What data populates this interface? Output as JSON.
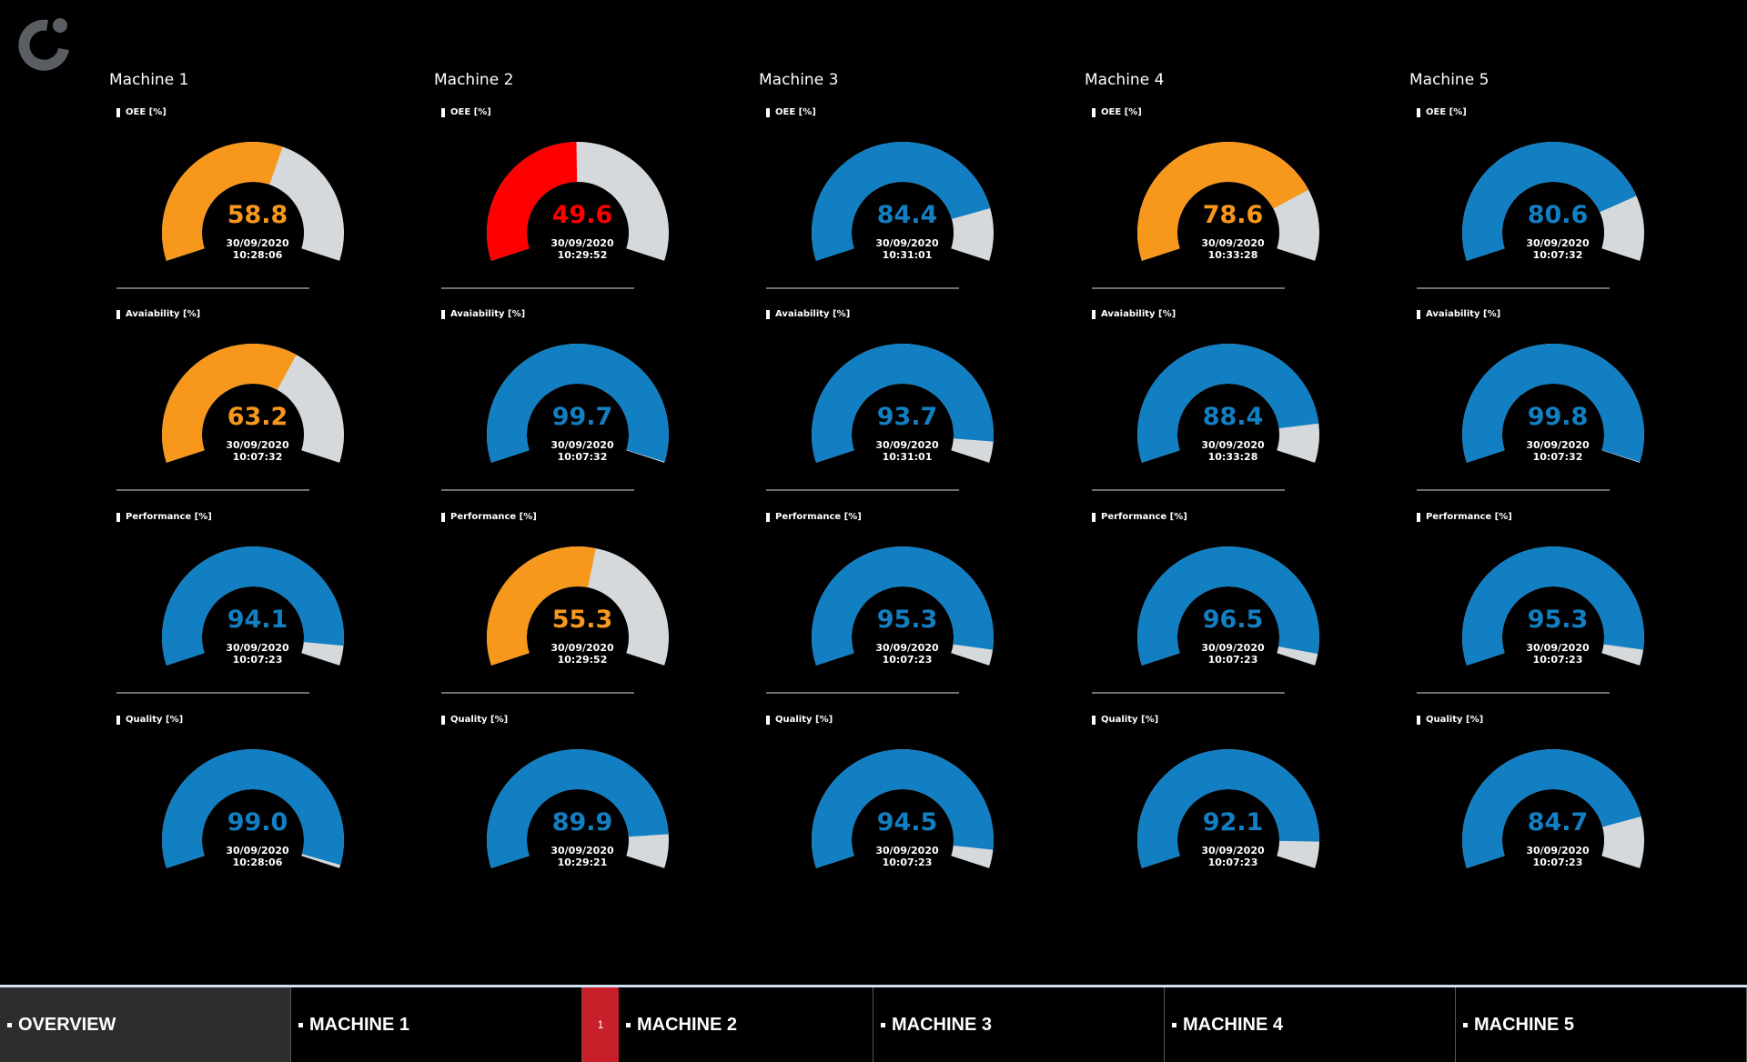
{
  "colors": {
    "blue": "#127fc2",
    "orange": "#f7981d",
    "red": "#fe0000",
    "track": "#d6d9dc",
    "background": "#000000"
  },
  "logo": {
    "icon": "company-logo-icon"
  },
  "machines": [
    {
      "title": "Machine 1",
      "gauges": [
        {
          "label": "OEE [%]",
          "value": 58.8,
          "display": "58.8",
          "status": "orange",
          "date": "30/09/2020",
          "time": "10:28:06"
        },
        {
          "label": "Avaiability [%]",
          "value": 63.2,
          "display": "63.2",
          "status": "orange",
          "date": "30/09/2020",
          "time": "10:07:32"
        },
        {
          "label": "Performance [%]",
          "value": 94.1,
          "display": "94.1",
          "status": "blue",
          "date": "30/09/2020",
          "time": "10:07:23"
        },
        {
          "label": "Quality [%]",
          "value": 99.0,
          "display": "99.0",
          "status": "blue",
          "date": "30/09/2020",
          "time": "10:28:06"
        }
      ]
    },
    {
      "title": "Machine 2",
      "gauges": [
        {
          "label": "OEE [%]",
          "value": 49.6,
          "display": "49.6",
          "status": "red",
          "date": "30/09/2020",
          "time": "10:29:52"
        },
        {
          "label": "Avaiability [%]",
          "value": 99.7,
          "display": "99.7",
          "status": "blue",
          "date": "30/09/2020",
          "time": "10:07:32"
        },
        {
          "label": "Performance [%]",
          "value": 55.3,
          "display": "55.3",
          "status": "orange",
          "date": "30/09/2020",
          "time": "10:29:52"
        },
        {
          "label": "Quality [%]",
          "value": 89.9,
          "display": "89.9",
          "status": "blue",
          "date": "30/09/2020",
          "time": "10:29:21"
        }
      ]
    },
    {
      "title": "Machine 3",
      "gauges": [
        {
          "label": "OEE [%]",
          "value": 84.4,
          "display": "84.4",
          "status": "blue",
          "date": "30/09/2020",
          "time": "10:31:01"
        },
        {
          "label": "Avaiability [%]",
          "value": 93.7,
          "display": "93.7",
          "status": "blue",
          "date": "30/09/2020",
          "time": "10:31:01"
        },
        {
          "label": "Performance [%]",
          "value": 95.3,
          "display": "95.3",
          "status": "blue",
          "date": "30/09/2020",
          "time": "10:07:23"
        },
        {
          "label": "Quality [%]",
          "value": 94.5,
          "display": "94.5",
          "status": "blue",
          "date": "30/09/2020",
          "time": "10:07:23"
        }
      ]
    },
    {
      "title": "Machine 4",
      "gauges": [
        {
          "label": "OEE [%]",
          "value": 78.6,
          "display": "78.6",
          "status": "orange",
          "date": "30/09/2020",
          "time": "10:33:28"
        },
        {
          "label": "Avaiability [%]",
          "value": 88.4,
          "display": "88.4",
          "status": "blue",
          "date": "30/09/2020",
          "time": "10:33:28"
        },
        {
          "label": "Performance [%]",
          "value": 96.5,
          "display": "96.5",
          "status": "blue",
          "date": "30/09/2020",
          "time": "10:07:23"
        },
        {
          "label": "Quality [%]",
          "value": 92.1,
          "display": "92.1",
          "status": "blue",
          "date": "30/09/2020",
          "time": "10:07:23"
        }
      ]
    },
    {
      "title": "Machine 5",
      "gauges": [
        {
          "label": "OEE [%]",
          "value": 80.6,
          "display": "80.6",
          "status": "blue",
          "date": "30/09/2020",
          "time": "10:07:32"
        },
        {
          "label": "Avaiability [%]",
          "value": 99.8,
          "display": "99.8",
          "status": "blue",
          "date": "30/09/2020",
          "time": "10:07:32"
        },
        {
          "label": "Performance [%]",
          "value": 95.3,
          "display": "95.3",
          "status": "blue",
          "date": "30/09/2020",
          "time": "10:07:23"
        },
        {
          "label": "Quality [%]",
          "value": 84.7,
          "display": "84.7",
          "status": "blue",
          "date": "30/09/2020",
          "time": "10:07:23"
        }
      ]
    }
  ],
  "nav": {
    "tabs": [
      {
        "label": "OVERVIEW",
        "active": true,
        "badge": ""
      },
      {
        "label": "MACHINE 1",
        "active": false,
        "badge": ""
      },
      {
        "label": "MACHINE 2",
        "active": false,
        "badge": "1"
      },
      {
        "label": "MACHINE 3",
        "active": false,
        "badge": ""
      },
      {
        "label": "MACHINE 4",
        "active": false,
        "badge": ""
      },
      {
        "label": "MACHINE 5",
        "active": false,
        "badge": ""
      }
    ]
  }
}
